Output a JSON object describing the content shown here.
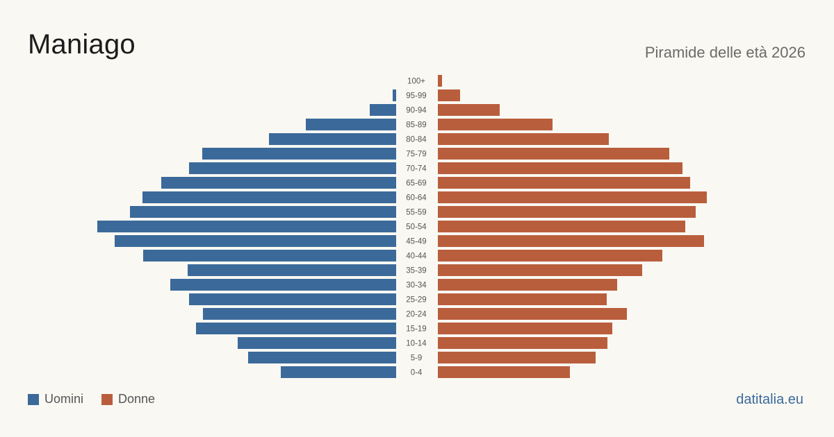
{
  "header": {
    "title": "Maniago",
    "subtitle": "Piramide delle età 2026"
  },
  "legend": {
    "men_label": "Uomini",
    "women_label": "Donne"
  },
  "footer": {
    "brand": "datitalia.eu"
  },
  "colors": {
    "men": "#3b6a9a",
    "women": "#b95e3c",
    "label": "#555555"
  },
  "chart_data": {
    "type": "bar",
    "orientation": "horizontal-pyramid",
    "title": "Maniago",
    "subtitle": "Piramide delle età 2026",
    "categories": [
      "100+",
      "95-99",
      "90-94",
      "85-89",
      "80-84",
      "75-79",
      "70-74",
      "65-69",
      "60-64",
      "55-59",
      "50-54",
      "45-49",
      "40-44",
      "35-39",
      "30-34",
      "25-29",
      "20-24",
      "15-19",
      "10-14",
      "5-9",
      "0-4"
    ],
    "series": [
      {
        "name": "Uomini",
        "side": "left",
        "values": [
          0,
          5,
          38,
          130,
          183,
          279,
          298,
          338,
          365,
          383,
          430,
          405,
          364,
          300,
          325,
          298,
          278,
          288,
          228,
          213,
          166
        ]
      },
      {
        "name": "Donne",
        "side": "right",
        "values": [
          6,
          32,
          89,
          165,
          246,
          333,
          352,
          363,
          387,
          371,
          356,
          383,
          323,
          294,
          258,
          243,
          272,
          251,
          244,
          227,
          190
        ]
      }
    ],
    "grid": false,
    "legend_position": "bottom-left"
  }
}
